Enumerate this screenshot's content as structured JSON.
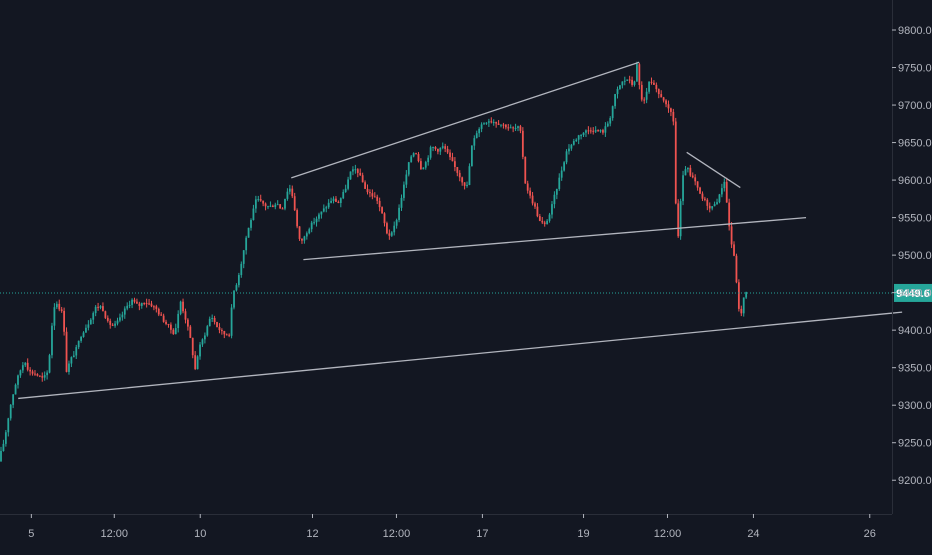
{
  "colors": {
    "background": "#131722",
    "up": "#26a69a",
    "down": "#ef5350",
    "trendline": "#b2b5be",
    "price_line": "#26a69a",
    "price_label_bg": "#26a69a",
    "axis_text": "#b2b5be",
    "axis_line": "#2a2e39"
  },
  "chart_data": {
    "type": "candlestick",
    "y_axis": {
      "ylim": [
        9155,
        9840
      ],
      "ticks": [
        9200,
        9250,
        9300,
        9350,
        9400,
        9450,
        9500,
        9550,
        9600,
        9650,
        9700,
        9750,
        9800
      ],
      "tick_labels": [
        "9200.0",
        "9250.0",
        "9300.0",
        "9350.0",
        "9400.0",
        "9450.0",
        "9500.0",
        "9550.0",
        "9600.0",
        "9650.0",
        "9700.0",
        "9750.0",
        "9800.0"
      ]
    },
    "x_axis": {
      "xlim": [
        0,
        882
      ],
      "ticks": [
        {
          "x": 31,
          "label": "5"
        },
        {
          "x": 113,
          "label": "12:00"
        },
        {
          "x": 198,
          "label": "10"
        },
        {
          "x": 309,
          "label": "12"
        },
        {
          "x": 392,
          "label": "12:00"
        },
        {
          "x": 477,
          "label": "17"
        },
        {
          "x": 577,
          "label": "19"
        },
        {
          "x": 660,
          "label": "12:00"
        },
        {
          "x": 745,
          "label": "24"
        },
        {
          "x": 860,
          "label": "26"
        }
      ]
    },
    "last_price": 9449.6,
    "last_price_label": "9449.6",
    "waypoints": [
      [
        0,
        9225
      ],
      [
        6,
        9255
      ],
      [
        11,
        9295
      ],
      [
        16,
        9325
      ],
      [
        21,
        9345
      ],
      [
        26,
        9360
      ],
      [
        30,
        9345
      ],
      [
        36,
        9342
      ],
      [
        44,
        9335
      ],
      [
        49,
        9345
      ],
      [
        53,
        9410
      ],
      [
        56,
        9440
      ],
      [
        60,
        9430
      ],
      [
        64,
        9420
      ],
      [
        67,
        9345
      ],
      [
        71,
        9360
      ],
      [
        76,
        9372
      ],
      [
        82,
        9395
      ],
      [
        89,
        9410
      ],
      [
        96,
        9430
      ],
      [
        102,
        9432
      ],
      [
        108,
        9410
      ],
      [
        114,
        9405
      ],
      [
        120,
        9415
      ],
      [
        126,
        9430
      ],
      [
        132,
        9440
      ],
      [
        138,
        9432
      ],
      [
        144,
        9438
      ],
      [
        150,
        9435
      ],
      [
        156,
        9428
      ],
      [
        162,
        9415
      ],
      [
        168,
        9405
      ],
      [
        174,
        9395
      ],
      [
        180,
        9438
      ],
      [
        186,
        9410
      ],
      [
        191,
        9380
      ],
      [
        194,
        9345
      ],
      [
        198,
        9375
      ],
      [
        204,
        9395
      ],
      [
        210,
        9420
      ],
      [
        216,
        9405
      ],
      [
        222,
        9395
      ],
      [
        228,
        9395
      ],
      [
        232,
        9450
      ],
      [
        236,
        9465
      ],
      [
        240,
        9490
      ],
      [
        245,
        9525
      ],
      [
        250,
        9550
      ],
      [
        255,
        9575
      ],
      [
        260,
        9570
      ],
      [
        265,
        9565
      ],
      [
        270,
        9565
      ],
      [
        275,
        9570
      ],
      [
        280,
        9560
      ],
      [
        285,
        9585
      ],
      [
        289,
        9590
      ],
      [
        293,
        9560
      ],
      [
        297,
        9520
      ],
      [
        301,
        9520
      ],
      [
        306,
        9535
      ],
      [
        312,
        9545
      ],
      [
        318,
        9555
      ],
      [
        324,
        9565
      ],
      [
        330,
        9575
      ],
      [
        336,
        9570
      ],
      [
        342,
        9585
      ],
      [
        348,
        9610
      ],
      [
        354,
        9615
      ],
      [
        359,
        9600
      ],
      [
        364,
        9585
      ],
      [
        369,
        9580
      ],
      [
        374,
        9575
      ],
      [
        379,
        9555
      ],
      [
        384,
        9530
      ],
      [
        388,
        9525
      ],
      [
        393,
        9545
      ],
      [
        398,
        9575
      ],
      [
        402,
        9600
      ],
      [
        407,
        9630
      ],
      [
        412,
        9640
      ],
      [
        418,
        9615
      ],
      [
        423,
        9625
      ],
      [
        428,
        9645
      ],
      [
        434,
        9640
      ],
      [
        440,
        9645
      ],
      [
        446,
        9630
      ],
      [
        452,
        9615
      ],
      [
        458,
        9600
      ],
      [
        463,
        9590
      ],
      [
        468,
        9645
      ],
      [
        473,
        9665
      ],
      [
        478,
        9675
      ],
      [
        484,
        9680
      ],
      [
        490,
        9678
      ],
      [
        496,
        9675
      ],
      [
        502,
        9672
      ],
      [
        508,
        9668
      ],
      [
        514,
        9670
      ],
      [
        517,
        9660
      ],
      [
        520,
        9600
      ],
      [
        525,
        9580
      ],
      [
        530,
        9565
      ],
      [
        535,
        9545
      ],
      [
        540,
        9540
      ],
      [
        545,
        9555
      ],
      [
        550,
        9580
      ],
      [
        556,
        9610
      ],
      [
        562,
        9640
      ],
      [
        568,
        9650
      ],
      [
        574,
        9660
      ],
      [
        580,
        9665
      ],
      [
        586,
        9668
      ],
      [
        592,
        9665
      ],
      [
        598,
        9665
      ],
      [
        604,
        9680
      ],
      [
        610,
        9715
      ],
      [
        616,
        9730
      ],
      [
        622,
        9735
      ],
      [
        628,
        9725
      ],
      [
        631,
        9755
      ],
      [
        635,
        9710
      ],
      [
        639,
        9705
      ],
      [
        643,
        9730
      ],
      [
        648,
        9725
      ],
      [
        652,
        9715
      ],
      [
        657,
        9710
      ],
      [
        661,
        9695
      ],
      [
        665,
        9690
      ],
      [
        667,
        9690
      ],
      [
        669,
        9580
      ],
      [
        672,
        9525
      ],
      [
        676,
        9600
      ],
      [
        680,
        9620
      ],
      [
        684,
        9605
      ],
      [
        688,
        9600
      ],
      [
        692,
        9585
      ],
      [
        696,
        9575
      ],
      [
        700,
        9570
      ],
      [
        704,
        9560
      ],
      [
        708,
        9570
      ],
      [
        712,
        9575
      ],
      [
        716,
        9595
      ],
      [
        718,
        9600
      ],
      [
        721,
        9555
      ],
      [
        724,
        9520
      ],
      [
        727,
        9500
      ],
      [
        730,
        9460
      ],
      [
        733,
        9410
      ],
      [
        736,
        9440
      ],
      [
        739,
        9449.6
      ]
    ],
    "trendlines": [
      {
        "name": "lower-support",
        "points": [
          [
            18,
            9309
          ],
          [
            892,
            9424
          ]
        ]
      },
      {
        "name": "channel-upper",
        "points": [
          [
            288,
            9603
          ],
          [
            632,
            9757
          ]
        ]
      },
      {
        "name": "channel-lower",
        "points": [
          [
            300,
            9494
          ],
          [
            797,
            9550
          ]
        ]
      },
      {
        "name": "descending-resistance",
        "points": [
          [
            679,
            9637
          ],
          [
            732,
            9590
          ]
        ]
      }
    ]
  }
}
